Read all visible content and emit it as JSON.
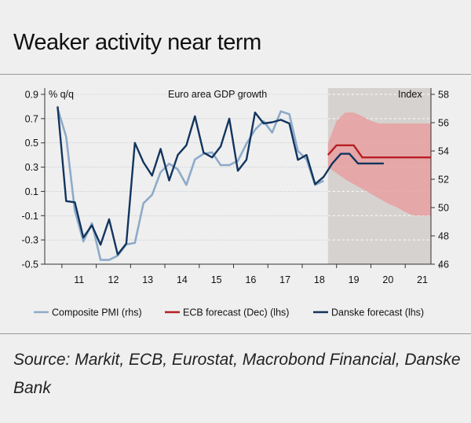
{
  "page": {
    "title": "Weaker activity near term",
    "source": "Source: Markit, ECB, Eurostat, Macrobond Financial, Danske Bank"
  },
  "colors": {
    "pmi": "#8eaac9",
    "ecb": "#b61f24",
    "danske": "#12355e",
    "fan": "#e8a0a0",
    "forecast_shade": "#d6d2d0",
    "grid": "#a9b3bf",
    "background": "#efefef"
  },
  "chart_data": {
    "type": "line",
    "title": "Euro area GDP growth",
    "left_axis_label": "% q/q",
    "right_axis_label": "Index",
    "left_ylim": [
      -0.5,
      0.9
    ],
    "left_ticks": [
      "0.9",
      "0.7",
      "0.5",
      "0.3",
      "0.1",
      "-0.1",
      "-0.3",
      "-0.5"
    ],
    "right_ylim": [
      46,
      58
    ],
    "right_ticks": [
      "58",
      "56",
      "54",
      "52",
      "50",
      "48",
      "46"
    ],
    "x_ticks": [
      "11",
      "12",
      "13",
      "14",
      "15",
      "16",
      "17",
      "18",
      "19",
      "20",
      "21"
    ],
    "forecast_start": 2018.75,
    "series": [
      {
        "name": "Composite PMI (rhs)",
        "axis": "right",
        "x": [
          2010.875,
          2011.125,
          2011.375,
          2011.625,
          2011.875,
          2012.125,
          2012.375,
          2012.625,
          2012.875,
          2013.125,
          2013.375,
          2013.625,
          2013.875,
          2014.125,
          2014.375,
          2014.625,
          2014.875,
          2015.125,
          2015.375,
          2015.625,
          2015.875,
          2016.125,
          2016.375,
          2016.625,
          2016.875,
          2017.125,
          2017.375,
          2017.625,
          2017.875,
          2018.125,
          2018.375,
          2018.625
        ],
        "values": [
          57.0,
          55.0,
          49.8,
          47.6,
          48.9,
          46.3,
          46.3,
          46.6,
          47.4,
          47.5,
          50.3,
          50.9,
          52.5,
          53.1,
          52.7,
          51.6,
          53.4,
          53.8,
          53.9,
          53.0,
          53.0,
          53.3,
          54.5,
          55.5,
          56.1,
          55.3,
          56.8,
          56.6,
          54.0,
          53.4,
          51.6,
          51.9
        ]
      },
      {
        "name": "ECB forecast (Dec) (lhs)",
        "axis": "left",
        "x": [
          2018.75,
          2019.0,
          2019.5,
          2019.75,
          2020.0,
          2020.5,
          2021.0,
          2021.75
        ],
        "values": [
          0.4,
          0.48,
          0.48,
          0.38,
          0.38,
          0.38,
          0.38,
          0.38
        ]
      },
      {
        "name": "Danske forecast (lhs)",
        "axis": "left",
        "x": [
          2010.875,
          2011.125,
          2011.375,
          2011.625,
          2011.875,
          2012.125,
          2012.375,
          2012.625,
          2012.875,
          2013.125,
          2013.375,
          2013.625,
          2013.875,
          2014.125,
          2014.375,
          2014.625,
          2014.875,
          2015.125,
          2015.375,
          2015.625,
          2015.875,
          2016.125,
          2016.375,
          2016.625,
          2016.875,
          2017.125,
          2017.375,
          2017.625,
          2017.875,
          2018.125,
          2018.375,
          2018.625,
          2018.875,
          2019.125,
          2019.375,
          2019.625,
          2019.875,
          2020.125,
          2020.375
        ],
        "values": [
          0.8,
          0.02,
          0.01,
          -0.28,
          -0.18,
          -0.34,
          -0.13,
          -0.42,
          -0.33,
          0.5,
          0.34,
          0.23,
          0.45,
          0.19,
          0.4,
          0.48,
          0.72,
          0.42,
          0.38,
          0.47,
          0.7,
          0.27,
          0.36,
          0.75,
          0.66,
          0.67,
          0.69,
          0.66,
          0.36,
          0.4,
          0.16,
          0.22,
          0.33,
          0.41,
          0.41,
          0.33,
          0.33,
          0.33,
          0.33
        ]
      }
    ],
    "fan_band": {
      "x": [
        2018.75,
        2019.0,
        2019.25,
        2019.5,
        2019.75,
        2020.0,
        2020.25,
        2020.5,
        2020.75,
        2021.0,
        2021.25,
        2021.75
      ],
      "upper": [
        0.5,
        0.68,
        0.75,
        0.75,
        0.72,
        0.68,
        0.66,
        0.66,
        0.66,
        0.66,
        0.66,
        0.66
      ],
      "lower": [
        0.3,
        0.25,
        0.2,
        0.16,
        0.12,
        0.08,
        0.04,
        0.0,
        -0.03,
        -0.07,
        -0.1,
        -0.1
      ]
    },
    "legend": [
      "Composite PMI (rhs)",
      "ECB forecast (Dec) (lhs)",
      "Danske forecast (lhs)"
    ]
  }
}
